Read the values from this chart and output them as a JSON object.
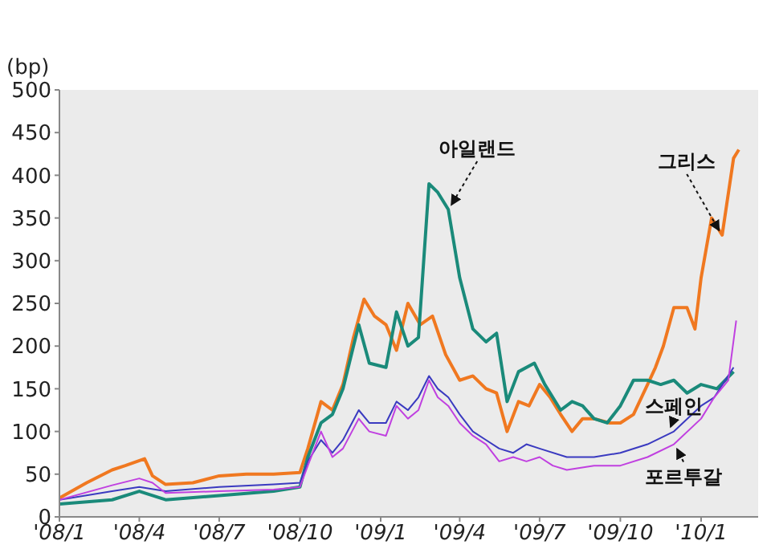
{
  "chart_data": {
    "type": "line",
    "ylabel": "(bp)",
    "xlim": [
      "2008-01-01",
      "2010-03-07"
    ],
    "xticks": [
      {
        "value": "2008-01-01",
        "label": "'08/1"
      },
      {
        "value": "2008-04-01",
        "label": "'08/4"
      },
      {
        "value": "2008-07-01",
        "label": "'08/7"
      },
      {
        "value": "2008-10-01",
        "label": "'08/10"
      },
      {
        "value": "2009-01-01",
        "label": "'09/1"
      },
      {
        "value": "2009-04-01",
        "label": "'09/4"
      },
      {
        "value": "2009-07-01",
        "label": "'09/7"
      },
      {
        "value": "2009-10-01",
        "label": "'09/10"
      },
      {
        "value": "2010-01-01",
        "label": "'10/1"
      }
    ],
    "ylim": [
      0,
      500
    ],
    "yticks": [
      0,
      50,
      100,
      150,
      200,
      250,
      300,
      350,
      400,
      450,
      500
    ],
    "legend": false,
    "marker": "none",
    "line_style": "solid",
    "series": [
      {
        "name": "그리스",
        "color": "#f07820",
        "x": [
          "2008-01-01",
          "2008-02-01",
          "2008-03-01",
          "2008-03-16",
          "2008-04-07",
          "2008-04-16",
          "2008-05-01",
          "2008-06-01",
          "2008-07-01",
          "2008-08-01",
          "2008-09-01",
          "2008-10-01",
          "2008-10-10",
          "2008-10-25",
          "2008-11-07",
          "2008-11-19",
          "2008-12-01",
          "2008-12-13",
          "2008-12-25",
          "2009-01-07",
          "2009-01-19",
          "2009-02-01",
          "2009-02-15",
          "2009-03-01",
          "2009-03-16",
          "2009-04-01",
          "2009-04-16",
          "2009-05-01",
          "2009-05-13",
          "2009-05-25",
          "2009-06-07",
          "2009-06-19",
          "2009-07-01",
          "2009-07-13",
          "2009-07-25",
          "2009-08-07",
          "2009-08-19",
          "2009-09-01",
          "2009-09-19",
          "2009-10-01",
          "2009-10-16",
          "2009-11-01",
          "2009-11-10",
          "2009-11-19",
          "2009-12-01",
          "2009-12-16",
          "2009-12-25",
          "2010-01-01",
          "2010-01-13",
          "2010-01-25",
          "2010-02-07",
          "2010-02-13"
        ],
        "values": [
          22,
          40,
          55,
          60,
          68,
          48,
          38,
          40,
          48,
          50,
          50,
          52,
          80,
          135,
          125,
          155,
          210,
          255,
          235,
          225,
          195,
          250,
          225,
          235,
          190,
          160,
          165,
          150,
          145,
          100,
          135,
          130,
          155,
          140,
          120,
          100,
          115,
          115,
          110,
          110,
          120,
          155,
          175,
          200,
          245,
          245,
          220,
          280,
          350,
          330,
          420,
          430
        ]
      },
      {
        "name": "아일랜드",
        "color": "#1a8a7a",
        "x": [
          "2008-01-01",
          "2008-03-01",
          "2008-04-01",
          "2008-04-16",
          "2008-05-01",
          "2008-07-01",
          "2008-09-01",
          "2008-10-01",
          "2008-10-10",
          "2008-10-25",
          "2008-11-07",
          "2008-11-19",
          "2008-12-07",
          "2008-12-19",
          "2009-01-07",
          "2009-01-19",
          "2009-02-01",
          "2009-02-13",
          "2009-02-25",
          "2009-03-07",
          "2009-03-19",
          "2009-04-01",
          "2009-04-16",
          "2009-05-01",
          "2009-05-13",
          "2009-05-25",
          "2009-06-07",
          "2009-06-25",
          "2009-07-07",
          "2009-07-25",
          "2009-08-07",
          "2009-08-19",
          "2009-09-01",
          "2009-09-16",
          "2009-10-01",
          "2009-10-16",
          "2009-11-01",
          "2009-11-16",
          "2009-12-01",
          "2009-12-16",
          "2010-01-01",
          "2010-01-19",
          "2010-02-07"
        ],
        "values": [
          15,
          20,
          30,
          25,
          20,
          25,
          30,
          35,
          70,
          110,
          120,
          150,
          225,
          180,
          175,
          240,
          200,
          210,
          390,
          380,
          360,
          280,
          220,
          205,
          215,
          135,
          170,
          180,
          155,
          125,
          135,
          130,
          115,
          110,
          130,
          160,
          160,
          155,
          160,
          145,
          155,
          150,
          170
        ]
      },
      {
        "name": "스페인",
        "color": "#3a3ac0",
        "x": [
          "2008-01-01",
          "2008-03-01",
          "2008-04-01",
          "2008-05-01",
          "2008-07-01",
          "2008-09-01",
          "2008-10-01",
          "2008-10-10",
          "2008-10-25",
          "2008-11-07",
          "2008-11-19",
          "2008-12-07",
          "2008-12-19",
          "2009-01-07",
          "2009-01-19",
          "2009-02-01",
          "2009-02-13",
          "2009-02-25",
          "2009-03-07",
          "2009-03-19",
          "2009-04-01",
          "2009-04-16",
          "2009-05-01",
          "2009-05-16",
          "2009-06-01",
          "2009-06-16",
          "2009-07-01",
          "2009-08-01",
          "2009-09-01",
          "2009-10-01",
          "2009-11-01",
          "2009-12-01",
          "2010-01-01",
          "2010-01-16",
          "2010-02-07"
        ],
        "values": [
          20,
          30,
          35,
          30,
          35,
          38,
          40,
          65,
          90,
          75,
          90,
          125,
          110,
          110,
          135,
          125,
          140,
          165,
          150,
          140,
          120,
          100,
          90,
          80,
          75,
          85,
          80,
          70,
          70,
          75,
          85,
          100,
          130,
          140,
          175
        ]
      },
      {
        "name": "포르투갈",
        "color": "#c040e0",
        "x": [
          "2008-01-01",
          "2008-03-01",
          "2008-04-01",
          "2008-04-16",
          "2008-05-01",
          "2008-07-01",
          "2008-09-01",
          "2008-10-01",
          "2008-10-10",
          "2008-10-25",
          "2008-11-07",
          "2008-11-19",
          "2008-12-07",
          "2008-12-19",
          "2009-01-07",
          "2009-01-19",
          "2009-02-01",
          "2009-02-13",
          "2009-02-25",
          "2009-03-07",
          "2009-03-19",
          "2009-04-01",
          "2009-04-16",
          "2009-05-01",
          "2009-05-16",
          "2009-06-01",
          "2009-06-16",
          "2009-07-01",
          "2009-07-16",
          "2009-08-01",
          "2009-09-01",
          "2009-10-01",
          "2009-11-01",
          "2009-12-01",
          "2010-01-01",
          "2010-01-16",
          "2010-02-01",
          "2010-02-10"
        ],
        "values": [
          20,
          37,
          45,
          40,
          28,
          30,
          32,
          35,
          60,
          100,
          70,
          80,
          115,
          100,
          95,
          130,
          115,
          125,
          160,
          140,
          130,
          110,
          95,
          85,
          65,
          70,
          65,
          70,
          60,
          55,
          60,
          60,
          70,
          85,
          115,
          140,
          160,
          230
        ]
      }
    ]
  }
}
